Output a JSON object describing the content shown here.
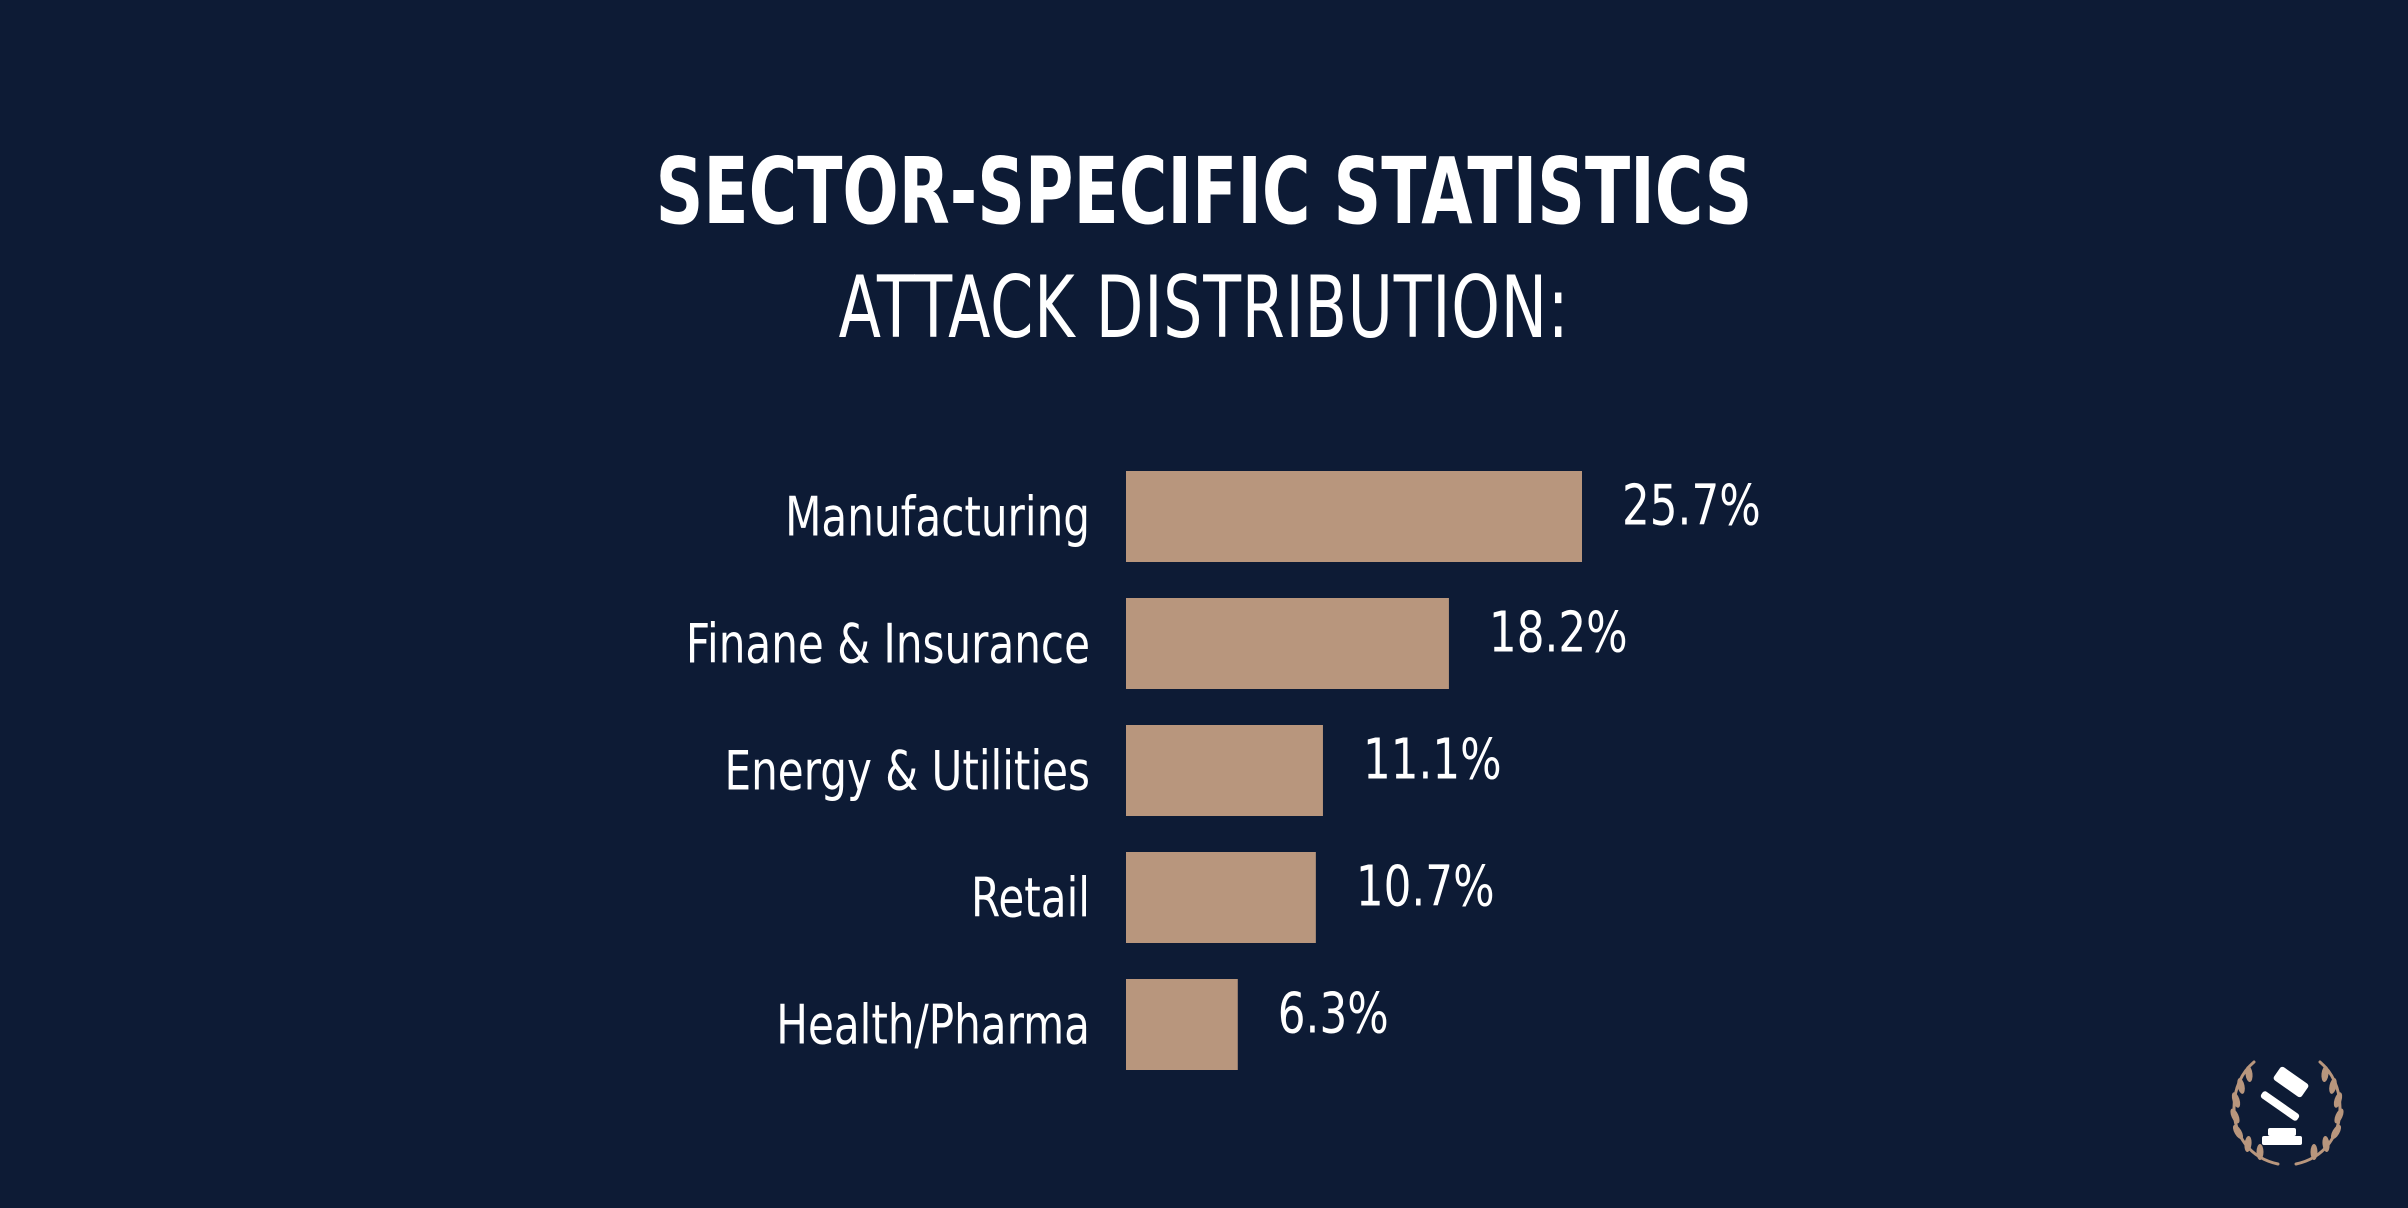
{
  "colors": {
    "background": "#0d1b35",
    "bar": "#b8967d",
    "text": "#ffffff",
    "seal": "#b8967d"
  },
  "chart_data": {
    "type": "bar",
    "orientation": "horizontal",
    "title": "SECTOR-SPECIFIC STATISTICS",
    "subtitle": "ATTACK DISTRIBUTION:",
    "categories": [
      "Manufacturing",
      "Finane & Insurance",
      "Energy & Utilities",
      "Retail",
      "Health/Pharma"
    ],
    "values": [
      25.7,
      18.2,
      11.1,
      10.7,
      6.3
    ],
    "value_labels": [
      "25.7%",
      "18.2%",
      "11.1%",
      "10.7%",
      "6.3%"
    ],
    "xlim": [
      0,
      25.7
    ],
    "grid": false,
    "legend": "none"
  },
  "logo": {
    "icon": "gavel-laurel-icon"
  }
}
